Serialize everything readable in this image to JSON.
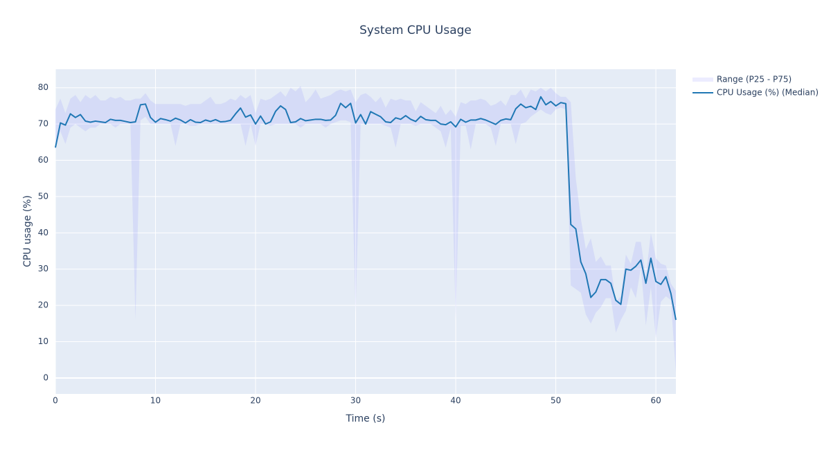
{
  "chart_data": {
    "type": "line",
    "title": "System CPU Usage",
    "xlabel": "Time (s)",
    "ylabel": "CPU usage (%)",
    "xlim": [
      0,
      62
    ],
    "ylim": [
      -4.4,
      85.1
    ],
    "xticks": [
      0,
      10,
      20,
      30,
      40,
      50,
      60
    ],
    "yticks": [
      0,
      10,
      20,
      30,
      40,
      50,
      60,
      70,
      80
    ],
    "grid": true,
    "legend": "right",
    "x": [
      0,
      0.5,
      1,
      1.5,
      2,
      2.5,
      3,
      3.5,
      4,
      4.5,
      5,
      5.5,
      6,
      6.5,
      7,
      7.5,
      8,
      8.5,
      9,
      9.5,
      10,
      10.5,
      11,
      11.5,
      12,
      12.5,
      13,
      13.5,
      14,
      14.5,
      15,
      15.5,
      16,
      16.5,
      17,
      17.5,
      18,
      18.5,
      19,
      19.5,
      20,
      20.5,
      21,
      21.5,
      22,
      22.5,
      23,
      23.5,
      24,
      24.5,
      25,
      25.5,
      26,
      26.5,
      27,
      27.5,
      28,
      28.5,
      29,
      29.5,
      30,
      30.5,
      31,
      31.5,
      32,
      32.5,
      33,
      33.5,
      34,
      34.5,
      35,
      35.5,
      36,
      36.5,
      37,
      37.5,
      38,
      38.5,
      39,
      39.5,
      40,
      40.5,
      41,
      41.5,
      42,
      42.5,
      43,
      43.5,
      44,
      44.5,
      45,
      45.5,
      46,
      46.5,
      47,
      47.5,
      48,
      48.5,
      49,
      49.5,
      50,
      50.5,
      51,
      51.5,
      52,
      52.5,
      53,
      53.5,
      54,
      54.5,
      55,
      55.5,
      56,
      56.5,
      57,
      57.5,
      58,
      58.5,
      59,
      59.5,
      60,
      60.5,
      61,
      61.5,
      62
    ],
    "series": [
      {
        "name": "Range (P25 - P75)",
        "color": "rgba(110,110,255,0.13)",
        "upper": [
          74,
          77,
          73,
          77,
          78,
          76,
          78,
          77,
          78,
          76.5,
          76.5,
          77.5,
          77,
          77.5,
          76.5,
          76.5,
          77,
          77,
          78.5,
          76.5,
          75.5,
          75.5,
          75.5,
          75.5,
          75.5,
          75.5,
          75,
          75.5,
          75.5,
          75.5,
          76.5,
          77.5,
          75.5,
          75.5,
          76,
          77,
          76.5,
          78,
          77,
          78,
          73,
          77,
          76.5,
          77,
          78,
          79,
          77.5,
          80,
          79,
          80.5,
          76,
          77.5,
          79.5,
          77,
          77.5,
          78,
          79,
          79.5,
          79,
          79.5,
          76,
          78,
          78.5,
          77.5,
          76,
          77.5,
          74.5,
          77,
          76.5,
          77,
          76.5,
          76.5,
          73.5,
          76,
          75,
          74,
          73,
          75,
          72.5,
          74,
          72,
          76,
          75.5,
          76.5,
          76.5,
          77,
          76.5,
          75,
          75.5,
          76.5,
          75,
          78,
          78,
          79.5,
          77,
          79.5,
          79,
          80,
          79,
          80,
          78.5,
          77.5,
          77.5,
          76,
          55,
          44,
          35.5,
          38.5,
          32,
          33.5,
          31,
          31,
          21,
          22.5,
          34,
          31.5,
          37.5,
          37.5,
          28,
          40,
          33,
          31.5,
          31,
          26,
          24
        ],
        "lower": [
          63,
          68,
          64.5,
          69,
          70,
          69,
          68,
          69,
          69,
          70,
          70,
          70,
          69,
          70,
          70,
          70,
          16,
          71,
          72,
          70,
          70,
          70,
          70,
          70,
          64,
          70,
          70,
          69.5,
          69.5,
          70,
          70,
          70,
          70,
          70,
          70,
          70,
          70,
          70,
          64,
          70,
          64,
          70,
          70,
          69.5,
          70,
          70,
          70,
          70,
          70,
          69,
          70,
          70,
          70,
          70,
          69,
          70,
          70.5,
          71,
          71,
          70.5,
          18,
          70,
          70,
          70,
          70,
          70,
          69.5,
          69,
          63.5,
          70,
          70,
          70,
          69.5,
          70,
          70,
          70,
          69,
          68,
          63.5,
          69,
          16,
          69.5,
          69.5,
          63,
          70,
          70,
          70,
          69,
          64,
          70,
          70,
          70,
          64.5,
          70,
          70.5,
          72,
          73,
          74,
          73,
          72.5,
          74,
          74.5,
          74,
          25.5,
          24.5,
          23.5,
          17.5,
          15,
          18,
          19.5,
          22,
          22,
          12.5,
          16,
          18.5,
          25,
          22,
          30.5,
          14.5,
          25,
          11,
          21,
          22.5,
          21.5,
          1.5
        ]
      },
      {
        "name": "CPU Usage (%) (Median)",
        "color": "#1f77b4",
        "values": [
          63.5,
          70.3,
          69.7,
          72.8,
          71.8,
          72.6,
          70.8,
          70.5,
          70.8,
          70.6,
          70.4,
          71.3,
          71.0,
          71.0,
          70.7,
          70.4,
          70.6,
          75.3,
          75.5,
          71.8,
          70.5,
          71.5,
          71.2,
          70.8,
          71.6,
          71.1,
          70.3,
          71.2,
          70.5,
          70.4,
          71.1,
          70.7,
          71.2,
          70.6,
          70.7,
          71.0,
          72.8,
          74.4,
          71.9,
          72.5,
          70.0,
          72.2,
          70.0,
          70.6,
          73.5,
          75.0,
          74.0,
          70.4,
          70.6,
          71.5,
          70.9,
          71.1,
          71.3,
          71.3,
          71.0,
          71.1,
          72.4,
          75.7,
          74.5,
          75.7,
          70.3,
          72.6,
          70.0,
          73.4,
          72.7,
          72.0,
          70.6,
          70.4,
          71.7,
          71.3,
          72.3,
          71.3,
          70.7,
          72.1,
          71.2,
          71.0,
          71.0,
          70.0,
          69.8,
          70.6,
          69.2,
          71.3,
          70.5,
          71.1,
          71.1,
          71.5,
          71.1,
          70.5,
          69.9,
          71.0,
          71.4,
          71.2,
          74.2,
          75.5,
          74.5,
          74.9,
          74.0,
          77.5,
          75.3,
          76.2,
          75.0,
          75.9,
          75.6,
          42.3,
          41.1,
          32.0,
          28.7,
          22.2,
          23.7,
          27.1,
          27.1,
          26.1,
          21.4,
          20.3,
          30.0,
          29.7,
          30.8,
          32.5,
          26.1,
          33.0,
          26.6,
          25.8,
          27.9,
          23.3,
          16.0
        ]
      }
    ]
  }
}
